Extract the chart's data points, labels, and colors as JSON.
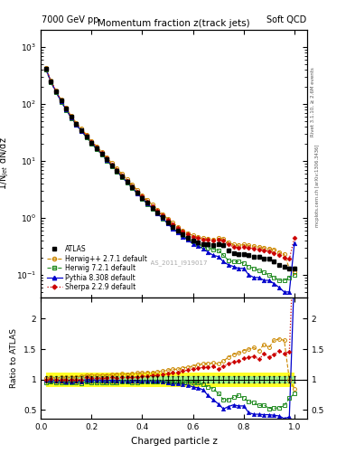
{
  "title": "Momentum fraction z(track jets)",
  "top_left_label": "7000 GeV pp",
  "top_right_label": "Soft QCD",
  "right_label_top": "Rivet 3.1.10, ≥ 2.6M events",
  "right_label_bottom": "mcplots.cern.ch [arXiv:1306.3436]",
  "watermark": "ATLAS_2011_I919017",
  "xlabel": "Charged particle z",
  "ylabel_main": "1/N$_{jet}$ dN/dz",
  "ylabel_ratio": "Ratio to ATLAS",
  "xlim": [
    0.0,
    1.05
  ],
  "ylim_main": [
    0.04,
    2000
  ],
  "ylim_ratio": [
    0.35,
    2.35
  ],
  "atlas_x": [
    0.02,
    0.04,
    0.06,
    0.08,
    0.1,
    0.12,
    0.14,
    0.16,
    0.18,
    0.2,
    0.22,
    0.24,
    0.26,
    0.28,
    0.3,
    0.32,
    0.34,
    0.36,
    0.38,
    0.4,
    0.42,
    0.44,
    0.46,
    0.48,
    0.5,
    0.52,
    0.54,
    0.56,
    0.58,
    0.6,
    0.62,
    0.64,
    0.66,
    0.68,
    0.7,
    0.72,
    0.74,
    0.76,
    0.78,
    0.8,
    0.82,
    0.84,
    0.86,
    0.88,
    0.9,
    0.92,
    0.94,
    0.96,
    0.98,
    1.0
  ],
  "atlas_y": [
    420,
    250,
    168,
    116,
    83,
    60,
    45,
    35,
    27,
    21,
    17,
    13.5,
    10.7,
    8.5,
    6.8,
    5.4,
    4.35,
    3.5,
    2.8,
    2.25,
    1.83,
    1.52,
    1.24,
    1.02,
    0.84,
    0.7,
    0.6,
    0.51,
    0.45,
    0.4,
    0.37,
    0.35,
    0.34,
    0.33,
    0.35,
    0.33,
    0.27,
    0.24,
    0.23,
    0.23,
    0.22,
    0.21,
    0.21,
    0.19,
    0.19,
    0.17,
    0.15,
    0.14,
    0.13,
    0.13
  ],
  "atlas_yerr": [
    21,
    12.5,
    8.4,
    5.8,
    4.1,
    3.0,
    2.25,
    1.75,
    1.35,
    1.05,
    0.85,
    0.68,
    0.54,
    0.43,
    0.34,
    0.27,
    0.22,
    0.175,
    0.14,
    0.113,
    0.092,
    0.076,
    0.062,
    0.051,
    0.042,
    0.035,
    0.03,
    0.026,
    0.023,
    0.02,
    0.0185,
    0.0175,
    0.017,
    0.0165,
    0.0175,
    0.0165,
    0.0135,
    0.012,
    0.0115,
    0.0115,
    0.011,
    0.0105,
    0.0105,
    0.0095,
    0.0095,
    0.0085,
    0.0075,
    0.007,
    0.0065,
    0.0065
  ],
  "herwig_x": [
    0.02,
    0.04,
    0.06,
    0.08,
    0.1,
    0.12,
    0.14,
    0.16,
    0.18,
    0.2,
    0.22,
    0.24,
    0.26,
    0.28,
    0.3,
    0.32,
    0.34,
    0.36,
    0.38,
    0.4,
    0.42,
    0.44,
    0.46,
    0.48,
    0.5,
    0.52,
    0.54,
    0.56,
    0.58,
    0.6,
    0.62,
    0.64,
    0.66,
    0.68,
    0.7,
    0.72,
    0.74,
    0.76,
    0.78,
    0.8,
    0.82,
    0.84,
    0.86,
    0.88,
    0.9,
    0.92,
    0.94,
    0.96,
    0.98,
    1.0
  ],
  "herwig_y": [
    430,
    260,
    172,
    120,
    86,
    62,
    47,
    37,
    29,
    22.5,
    18.2,
    14.5,
    11.5,
    9.2,
    7.4,
    5.9,
    4.75,
    3.85,
    3.1,
    2.5,
    2.05,
    1.7,
    1.4,
    1.16,
    0.97,
    0.82,
    0.7,
    0.61,
    0.54,
    0.49,
    0.46,
    0.44,
    0.43,
    0.42,
    0.44,
    0.43,
    0.37,
    0.34,
    0.33,
    0.34,
    0.33,
    0.32,
    0.31,
    0.3,
    0.29,
    0.28,
    0.25,
    0.23,
    0.13,
    0.11
  ],
  "herwig_color": "#cc8800",
  "herwig7_x": [
    0.02,
    0.04,
    0.06,
    0.08,
    0.1,
    0.12,
    0.14,
    0.16,
    0.18,
    0.2,
    0.22,
    0.24,
    0.26,
    0.28,
    0.3,
    0.32,
    0.34,
    0.36,
    0.38,
    0.4,
    0.42,
    0.44,
    0.46,
    0.48,
    0.5,
    0.52,
    0.54,
    0.56,
    0.58,
    0.6,
    0.62,
    0.64,
    0.66,
    0.68,
    0.7,
    0.72,
    0.74,
    0.76,
    0.78,
    0.8,
    0.82,
    0.84,
    0.86,
    0.88,
    0.9,
    0.92,
    0.94,
    0.96,
    0.98,
    1.0
  ],
  "herwig7_y": [
    400,
    240,
    160,
    110,
    79,
    57,
    43,
    33,
    26,
    20,
    16.2,
    12.9,
    10.1,
    8.1,
    6.5,
    5.2,
    4.2,
    3.35,
    2.68,
    2.17,
    1.76,
    1.46,
    1.19,
    0.98,
    0.8,
    0.67,
    0.57,
    0.49,
    0.43,
    0.38,
    0.35,
    0.32,
    0.3,
    0.28,
    0.27,
    0.22,
    0.18,
    0.17,
    0.17,
    0.16,
    0.14,
    0.13,
    0.12,
    0.11,
    0.1,
    0.09,
    0.08,
    0.08,
    0.09,
    0.1
  ],
  "herwig7_color": "#228B22",
  "pythia_x": [
    0.02,
    0.04,
    0.06,
    0.08,
    0.1,
    0.12,
    0.14,
    0.16,
    0.18,
    0.2,
    0.22,
    0.24,
    0.26,
    0.28,
    0.3,
    0.32,
    0.34,
    0.36,
    0.38,
    0.4,
    0.42,
    0.44,
    0.46,
    0.48,
    0.5,
    0.52,
    0.54,
    0.56,
    0.58,
    0.6,
    0.62,
    0.64,
    0.66,
    0.68,
    0.7,
    0.72,
    0.74,
    0.76,
    0.78,
    0.8,
    0.82,
    0.84,
    0.86,
    0.88,
    0.9,
    0.92,
    0.94,
    0.96,
    0.98,
    1.0
  ],
  "pythia_y": [
    415,
    248,
    165,
    113,
    80,
    58,
    44,
    34,
    27,
    21,
    16.8,
    13.4,
    10.5,
    8.4,
    6.7,
    5.3,
    4.25,
    3.42,
    2.73,
    2.2,
    1.79,
    1.48,
    1.21,
    0.99,
    0.8,
    0.65,
    0.56,
    0.47,
    0.41,
    0.35,
    0.32,
    0.29,
    0.25,
    0.22,
    0.21,
    0.17,
    0.15,
    0.14,
    0.13,
    0.13,
    0.1,
    0.09,
    0.09,
    0.08,
    0.08,
    0.07,
    0.06,
    0.05,
    0.05,
    0.36
  ],
  "pythia_color": "#0000cc",
  "sherpa_x": [
    0.02,
    0.04,
    0.06,
    0.08,
    0.1,
    0.12,
    0.14,
    0.16,
    0.18,
    0.2,
    0.22,
    0.24,
    0.26,
    0.28,
    0.3,
    0.32,
    0.34,
    0.36,
    0.38,
    0.4,
    0.42,
    0.44,
    0.46,
    0.48,
    0.5,
    0.52,
    0.54,
    0.56,
    0.58,
    0.6,
    0.62,
    0.64,
    0.66,
    0.68,
    0.7,
    0.72,
    0.74,
    0.76,
    0.78,
    0.8,
    0.82,
    0.84,
    0.86,
    0.88,
    0.9,
    0.92,
    0.94,
    0.96,
    0.98,
    1.0
  ],
  "sherpa_y": [
    418,
    252,
    168,
    116,
    83,
    60,
    45,
    35,
    28,
    21.5,
    17.4,
    13.9,
    11.0,
    8.8,
    7.0,
    5.6,
    4.5,
    3.65,
    2.92,
    2.37,
    1.94,
    1.62,
    1.33,
    1.1,
    0.92,
    0.78,
    0.67,
    0.58,
    0.52,
    0.47,
    0.44,
    0.42,
    0.41,
    0.4,
    0.41,
    0.4,
    0.34,
    0.31,
    0.3,
    0.31,
    0.3,
    0.29,
    0.28,
    0.27,
    0.26,
    0.24,
    0.22,
    0.2,
    0.19,
    0.45
  ],
  "sherpa_color": "#cc0000",
  "band_yellow": 0.12,
  "band_green": 0.06
}
